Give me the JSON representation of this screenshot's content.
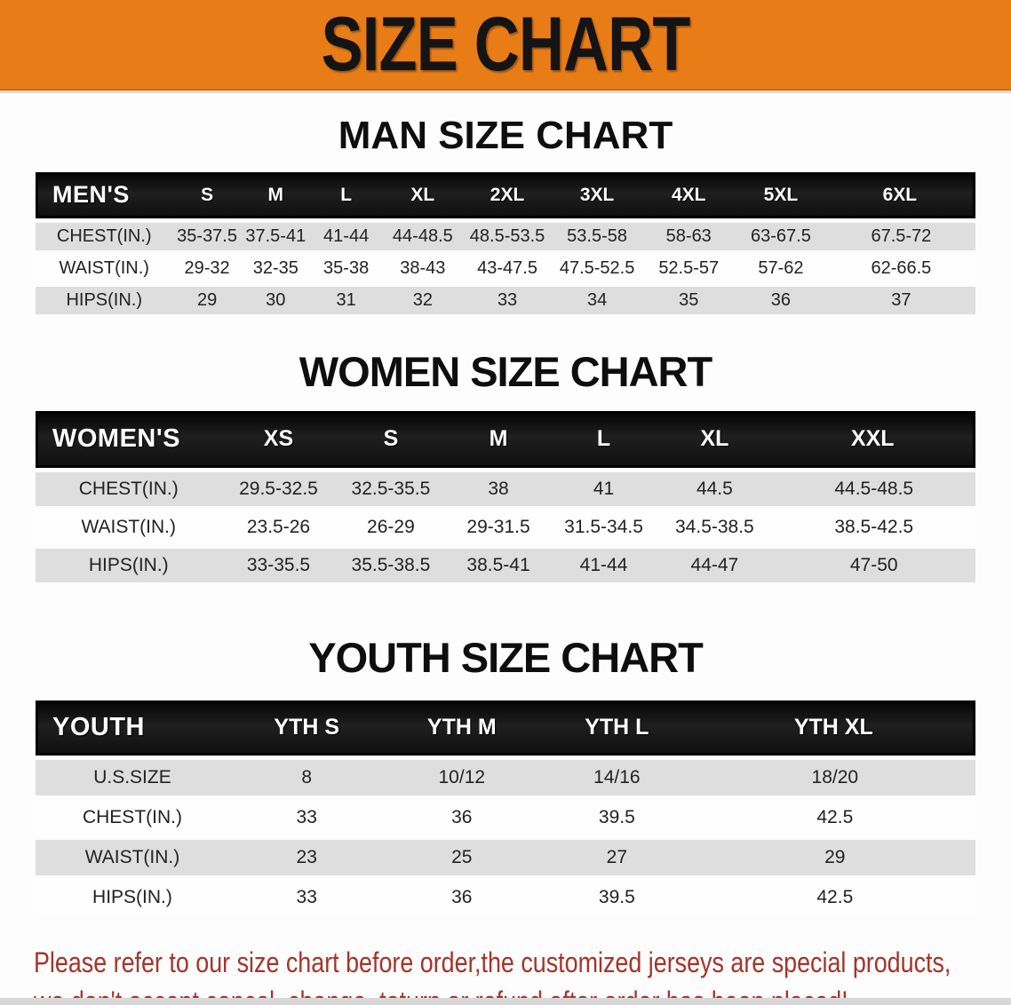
{
  "banner": {
    "title": "SIZE CHART",
    "bg_color": "#e87d18",
    "text_color": "#141414"
  },
  "sections": [
    {
      "id": "men",
      "title": "MAN SIZE CHART",
      "header_label": "MEN'S",
      "columns": [
        "S",
        "M",
        "L",
        "XL",
        "2XL",
        "3XL",
        "4XL",
        "5XL",
        "6XL"
      ],
      "rows": [
        {
          "label": "CHEST(IN.)",
          "values": [
            "35-37.5",
            "37.5-41",
            "41-44",
            "44-48.5",
            "48.5-53.5",
            "53.5-58",
            "58-63",
            "63-67.5",
            "67.5-72"
          ]
        },
        {
          "label": "WAIST(IN.)",
          "values": [
            "29-32",
            "32-35",
            "35-38",
            "38-43",
            "43-47.5",
            "47.5-52.5",
            "52.5-57",
            "57-62",
            "62-66.5"
          ]
        },
        {
          "label": "HIPS(IN.)",
          "values": [
            "29",
            "30",
            "31",
            "32",
            "33",
            "34",
            "35",
            "36",
            "37"
          ]
        }
      ]
    },
    {
      "id": "women",
      "title": "WOMEN SIZE CHART",
      "header_label": "WOMEN'S",
      "columns": [
        "XS",
        "S",
        "M",
        "L",
        "XL",
        "XXL"
      ],
      "rows": [
        {
          "label": "CHEST(IN.)",
          "values": [
            "29.5-32.5",
            "32.5-35.5",
            "38",
            "41",
            "44.5",
            "44.5-48.5"
          ]
        },
        {
          "label": "WAIST(IN.)",
          "values": [
            "23.5-26",
            "26-29",
            "29-31.5",
            "31.5-34.5",
            "34.5-38.5",
            "38.5-42.5"
          ]
        },
        {
          "label": "HIPS(IN.)",
          "values": [
            "33-35.5",
            "35.5-38.5",
            "38.5-41",
            "41-44",
            "44-47",
            "47-50"
          ]
        }
      ]
    },
    {
      "id": "youth",
      "title": "YOUTH SIZE CHART",
      "header_label": "YOUTH",
      "columns": [
        "YTH S",
        "YTH M",
        "YTH L",
        "YTH XL"
      ],
      "rows": [
        {
          "label": "U.S.SIZE",
          "values": [
            "8",
            "10/12",
            "14/16",
            "18/20"
          ]
        },
        {
          "label": "CHEST(IN.)",
          "values": [
            "33",
            "36",
            "39.5",
            "42.5"
          ]
        },
        {
          "label": "WAIST(IN.)",
          "values": [
            "23",
            "25",
            "27",
            "29"
          ]
        },
        {
          "label": "HIPS(IN.)",
          "values": [
            "33",
            "36",
            "39.5",
            "42.5"
          ]
        }
      ]
    }
  ],
  "disclaimer": {
    "line1": "Please refer to our size chart before order,the customized jerseys are special products,",
    "line2": "we don't accept cancel, change, teturn or refund after order has been placed!",
    "color": "#a5342a"
  },
  "colors": {
    "banner_orange": "#e87d18",
    "header_bar_black": "#141414",
    "row_gray": "#dedede",
    "row_white": "#fefefe",
    "disclaimer_red": "#a5342a",
    "bottom_strip_gray": "#d8d8d8"
  }
}
